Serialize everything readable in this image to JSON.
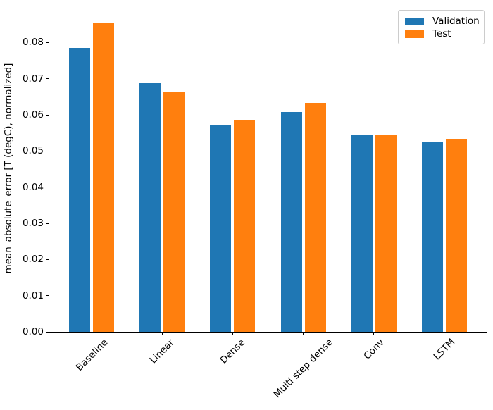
{
  "chart_data": {
    "type": "bar",
    "title": "",
    "xlabel": "",
    "ylabel": "mean_absolute_error [T (degC), normalized]",
    "categories": [
      "Baseline",
      "Linear",
      "Dense",
      "Multi step dense",
      "Conv",
      "LSTM"
    ],
    "series": [
      {
        "name": "Validation",
        "color": "#1f77b4",
        "values": [
          0.0785,
          0.0687,
          0.0573,
          0.0608,
          0.0545,
          0.0524
        ]
      },
      {
        "name": "Test",
        "color": "#ff7f0e",
        "values": [
          0.0855,
          0.0664,
          0.0584,
          0.0634,
          0.0544,
          0.0534
        ]
      }
    ],
    "ylim": [
      0,
      0.09
    ],
    "xlim": [
      -0.6,
      5.6
    ],
    "yticks": [
      "0.00",
      "0.01",
      "0.02",
      "0.03",
      "0.04",
      "0.05",
      "0.06",
      "0.07",
      "0.08"
    ],
    "xtick_rotation": 45,
    "grid": false,
    "bar_width": 0.3,
    "bar_offset": 0.17,
    "legend": {
      "position": "upper right",
      "entries": [
        "Validation",
        "Test"
      ]
    }
  }
}
